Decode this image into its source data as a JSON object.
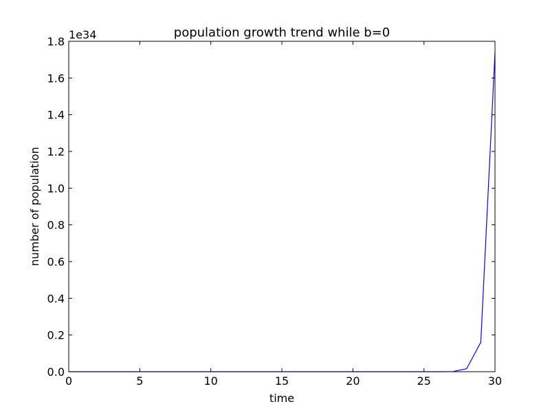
{
  "chart_data": {
    "type": "line",
    "title": "population growth trend while b=0",
    "xlabel": "time",
    "ylabel": "number of population",
    "y_offset_label": "1e34",
    "xlim": [
      0,
      30
    ],
    "ylim": [
      0,
      1.8
    ],
    "xticks": [
      0,
      5,
      10,
      15,
      20,
      25,
      30
    ],
    "xtick_labels": [
      "0",
      "5",
      "10",
      "15",
      "20",
      "25",
      "30"
    ],
    "yticks": [
      0,
      0.2,
      0.4,
      0.6,
      0.8,
      1.0,
      1.2,
      1.4,
      1.6,
      1.8
    ],
    "ytick_labels": [
      "0.0",
      "0.2",
      "0.4",
      "0.6",
      "0.8",
      "1.0",
      "1.2",
      "1.4",
      "1.6",
      "1.8"
    ],
    "grid": false,
    "series": [
      {
        "color": "#0000ff",
        "x": [
          0,
          1,
          2,
          3,
          4,
          5,
          6,
          7,
          8,
          9,
          10,
          11,
          12,
          13,
          14,
          15,
          16,
          17,
          18,
          19,
          20,
          21,
          22,
          23,
          24,
          25,
          26,
          27,
          28,
          29,
          30
        ],
        "y": [
          0,
          0,
          0,
          0,
          0,
          0,
          0,
          0,
          0,
          0,
          0,
          0,
          0,
          0,
          0,
          0,
          0,
          0,
          0,
          0,
          0,
          0,
          0,
          0,
          0,
          0,
          0,
          0.0002,
          0.016,
          0.16,
          1.74
        ]
      }
    ]
  }
}
